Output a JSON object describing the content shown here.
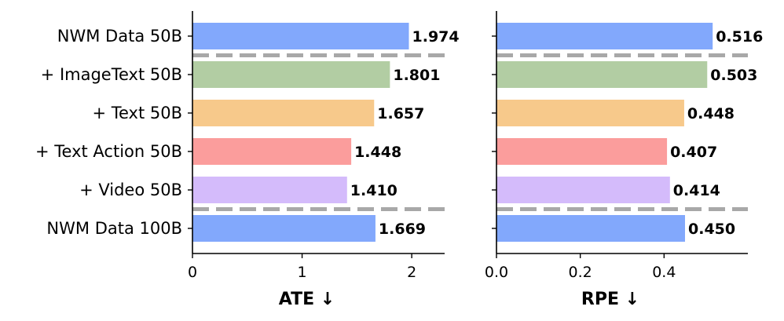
{
  "chart_data": [
    {
      "type": "bar",
      "orientation": "horizontal",
      "categories": [
        "NWM Data 50B",
        "+ ImageText 50B",
        "+ Text 50B",
        "+ Text Action 50B",
        "+ Video 50B",
        "NWM Data 100B"
      ],
      "values": [
        1.974,
        1.801,
        1.657,
        1.448,
        1.41,
        1.669
      ],
      "value_labels": [
        "1.974",
        "1.801",
        "1.657",
        "1.448",
        "1.410",
        "1.669"
      ],
      "colors": [
        "#82a8fc",
        "#b2cda3",
        "#f7c98b",
        "#fb9d9c",
        "#d4bbfb",
        "#82a8fc"
      ],
      "xlabel": "ATE ↓",
      "xlim": [
        0,
        2.3
      ],
      "xticks": [
        0,
        1,
        2
      ],
      "xtick_labels": [
        "0",
        "1",
        "2"
      ],
      "separators_after_index": [
        0,
        4
      ]
    },
    {
      "type": "bar",
      "orientation": "horizontal",
      "categories": [
        "NWM Data 50B",
        "+ ImageText 50B",
        "+ Text 50B",
        "+ Text Action 50B",
        "+ Video 50B",
        "NWM Data 100B"
      ],
      "values": [
        0.516,
        0.503,
        0.448,
        0.407,
        0.414,
        0.45
      ],
      "value_labels": [
        "0.516",
        "0.503",
        "0.448",
        "0.407",
        "0.414",
        "0.450"
      ],
      "colors": [
        "#82a8fc",
        "#b2cda3",
        "#f7c98b",
        "#fb9d9c",
        "#d4bbfb",
        "#82a8fc"
      ],
      "xlabel": "RPE ↓",
      "xlim": [
        0,
        0.6
      ],
      "xticks": [
        0,
        0.2,
        0.4
      ],
      "xtick_labels": [
        "0.0",
        "0.2",
        "0.4"
      ],
      "separators_after_index": [
        0,
        4
      ]
    }
  ]
}
